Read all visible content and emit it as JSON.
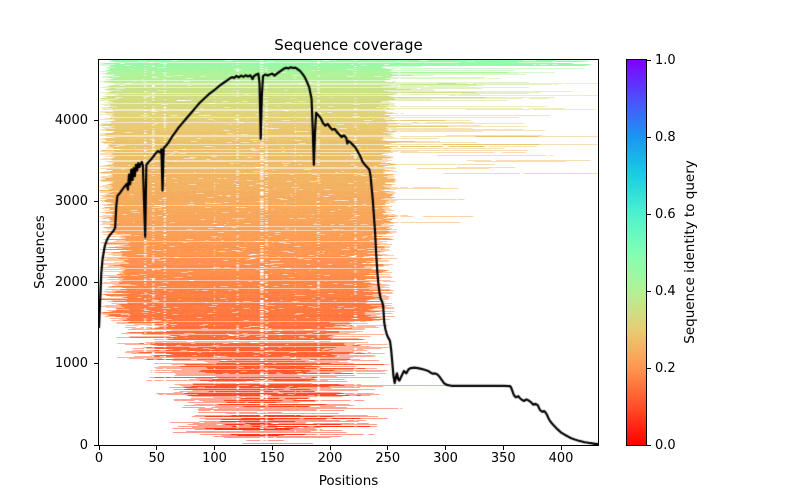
{
  "figure": {
    "title": "Sequence coverage",
    "xlabel": "Positions",
    "ylabel": "Sequences",
    "background": "#ffffff"
  },
  "colorbar": {
    "label": "Sequence identity to query",
    "tick_labels": [
      "0.0",
      "0.2",
      "0.4",
      "0.6",
      "0.8",
      "1.0"
    ],
    "tick_values": [
      0.0,
      0.2,
      0.4,
      0.6,
      0.8,
      1.0
    ],
    "stops": [
      {
        "t": 0.0,
        "color": "#ff0000"
      },
      {
        "t": 0.1,
        "color": "#ff4f28"
      },
      {
        "t": 0.2,
        "color": "#ff964f"
      },
      {
        "t": 0.3,
        "color": "#e6ce74"
      },
      {
        "t": 0.4,
        "color": "#b3f296"
      },
      {
        "t": 0.5,
        "color": "#80ffb4"
      },
      {
        "t": 0.6,
        "color": "#4df2ce"
      },
      {
        "t": 0.7,
        "color": "#1acee3"
      },
      {
        "t": 0.8,
        "color": "#1a96f2"
      },
      {
        "t": 0.9,
        "color": "#4d4ffc"
      },
      {
        "t": 1.0,
        "color": "#8000ff"
      }
    ]
  },
  "chart_data": {
    "type": "heatmap",
    "subtype": "msa-sequence-coverage-with-line",
    "title": "Sequence coverage",
    "xlabel": "Positions",
    "ylabel": "Sequences",
    "xlim": [
      0,
      432
    ],
    "ylim": [
      0,
      4740
    ],
    "x_ticks": [
      0,
      50,
      100,
      150,
      200,
      250,
      300,
      350,
      400
    ],
    "y_ticks": [
      0,
      1000,
      2000,
      3000,
      4000
    ],
    "grid": false,
    "legend": "none",
    "colorbar_label": "Sequence identity to query",
    "colorbar_range": [
      0.0,
      1.0
    ],
    "line_color": "#000000",
    "coverage_line": {
      "name": "number of sequences covering each position",
      "points": [
        [
          0,
          1450
        ],
        [
          1,
          1780
        ],
        [
          2,
          2120
        ],
        [
          3,
          2280
        ],
        [
          5,
          2450
        ],
        [
          7,
          2530
        ],
        [
          9,
          2580
        ],
        [
          11,
          2610
        ],
        [
          13,
          2645
        ],
        [
          14,
          2680
        ],
        [
          15,
          2950
        ],
        [
          16,
          3070
        ],
        [
          18,
          3100
        ],
        [
          20,
          3140
        ],
        [
          22,
          3180
        ],
        [
          24,
          3215
        ],
        [
          25,
          3145
        ],
        [
          26,
          3330
        ],
        [
          27,
          3210
        ],
        [
          28,
          3390
        ],
        [
          29,
          3260
        ],
        [
          30,
          3410
        ],
        [
          31,
          3310
        ],
        [
          32,
          3450
        ],
        [
          33,
          3380
        ],
        [
          34,
          3470
        ],
        [
          35,
          3420
        ],
        [
          36,
          3460
        ],
        [
          37,
          3485
        ],
        [
          38,
          3440
        ],
        [
          39,
          3000
        ],
        [
          40,
          2560
        ],
        [
          41,
          3450
        ],
        [
          43,
          3485
        ],
        [
          45,
          3515
        ],
        [
          47,
          3550
        ],
        [
          49,
          3590
        ],
        [
          51,
          3620
        ],
        [
          53,
          3600
        ],
        [
          54,
          3640
        ],
        [
          55,
          3130
        ],
        [
          56,
          3655
        ],
        [
          58,
          3685
        ],
        [
          60,
          3720
        ],
        [
          63,
          3790
        ],
        [
          66,
          3850
        ],
        [
          69,
          3910
        ],
        [
          72,
          3960
        ],
        [
          75,
          4010
        ],
        [
          78,
          4060
        ],
        [
          81,
          4110
        ],
        [
          84,
          4160
        ],
        [
          87,
          4210
        ],
        [
          90,
          4250
        ],
        [
          93,
          4290
        ],
        [
          96,
          4330
        ],
        [
          99,
          4360
        ],
        [
          102,
          4395
        ],
        [
          105,
          4430
        ],
        [
          108,
          4460
        ],
        [
          111,
          4490
        ],
        [
          113,
          4510
        ],
        [
          115,
          4530
        ],
        [
          117,
          4520
        ],
        [
          119,
          4545
        ],
        [
          121,
          4525
        ],
        [
          123,
          4548
        ],
        [
          125,
          4532
        ],
        [
          127,
          4552
        ],
        [
          129,
          4538
        ],
        [
          131,
          4552
        ],
        [
          133,
          4505
        ],
        [
          134,
          4540
        ],
        [
          136,
          4560
        ],
        [
          138,
          4572
        ],
        [
          139,
          4450
        ],
        [
          140,
          3770
        ],
        [
          141,
          4300
        ],
        [
          142,
          4540
        ],
        [
          144,
          4562
        ],
        [
          146,
          4548
        ],
        [
          148,
          4562
        ],
        [
          150,
          4572
        ],
        [
          152,
          4548
        ],
        [
          154,
          4572
        ],
        [
          156,
          4592
        ],
        [
          158,
          4612
        ],
        [
          160,
          4632
        ],
        [
          162,
          4645
        ],
        [
          164,
          4636
        ],
        [
          166,
          4650
        ],
        [
          168,
          4641
        ],
        [
          170,
          4646
        ],
        [
          172,
          4626
        ],
        [
          174,
          4606
        ],
        [
          176,
          4572
        ],
        [
          178,
          4532
        ],
        [
          180,
          4472
        ],
        [
          182,
          4402
        ],
        [
          184,
          4262
        ],
        [
          185,
          3900
        ],
        [
          186,
          3450
        ],
        [
          187,
          3850
        ],
        [
          188,
          4090
        ],
        [
          190,
          4056
        ],
        [
          192,
          4022
        ],
        [
          194,
          3962
        ],
        [
          196,
          3932
        ],
        [
          198,
          3952
        ],
        [
          200,
          3912
        ],
        [
          202,
          3882
        ],
        [
          204,
          3892
        ],
        [
          206,
          3852
        ],
        [
          208,
          3822
        ],
        [
          210,
          3792
        ],
        [
          212,
          3812
        ],
        [
          214,
          3782
        ],
        [
          215,
          3712
        ],
        [
          216,
          3742
        ],
        [
          218,
          3722
        ],
        [
          220,
          3692
        ],
        [
          222,
          3662
        ],
        [
          224,
          3612
        ],
        [
          226,
          3562
        ],
        [
          228,
          3492
        ],
        [
          230,
          3452
        ],
        [
          232,
          3422
        ],
        [
          234,
          3392
        ],
        [
          235,
          3322
        ],
        [
          236,
          3172
        ],
        [
          237,
          3022
        ],
        [
          238,
          2822
        ],
        [
          239,
          2622
        ],
        [
          240,
          2342
        ],
        [
          241,
          2122
        ],
        [
          242,
          1962
        ],
        [
          243,
          1862
        ],
        [
          244,
          1792
        ],
        [
          245,
          1772
        ],
        [
          246,
          1712
        ],
        [
          247,
          1502
        ],
        [
          248,
          1422
        ],
        [
          249,
          1372
        ],
        [
          250,
          1332
        ],
        [
          251,
          1307
        ],
        [
          252,
          1277
        ],
        [
          253,
          1162
        ],
        [
          254,
          1002
        ],
        [
          255,
          842
        ],
        [
          256,
          762
        ],
        [
          257,
          832
        ],
        [
          258,
          882
        ],
        [
          259,
          812
        ],
        [
          260,
          792
        ],
        [
          262,
          852
        ],
        [
          264,
          912
        ],
        [
          266,
          882
        ],
        [
          268,
          932
        ],
        [
          270,
          947
        ],
        [
          273,
          952
        ],
        [
          276,
          947
        ],
        [
          279,
          937
        ],
        [
          282,
          927
        ],
        [
          285,
          912
        ],
        [
          287,
          892
        ],
        [
          289,
          877
        ],
        [
          291,
          882
        ],
        [
          293,
          867
        ],
        [
          295,
          837
        ],
        [
          297,
          797
        ],
        [
          299,
          757
        ],
        [
          302,
          737
        ],
        [
          305,
          729
        ],
        [
          310,
          727
        ],
        [
          330,
          727
        ],
        [
          350,
          727
        ],
        [
          356,
          725
        ],
        [
          357,
          700
        ],
        [
          358,
          660
        ],
        [
          359,
          620
        ],
        [
          360,
          600
        ],
        [
          361,
          587
        ],
        [
          363,
          602
        ],
        [
          364,
          582
        ],
        [
          366,
          557
        ],
        [
          368,
          542
        ],
        [
          370,
          562
        ],
        [
          372,
          547
        ],
        [
          374,
          527
        ],
        [
          376,
          497
        ],
        [
          378,
          507
        ],
        [
          380,
          487
        ],
        [
          381,
          452
        ],
        [
          382,
          427
        ],
        [
          384,
          407
        ],
        [
          385,
          417
        ],
        [
          386,
          412
        ],
        [
          388,
          367
        ],
        [
          389,
          332
        ],
        [
          390,
          307
        ],
        [
          392,
          267
        ],
        [
          394,
          237
        ],
        [
          396,
          207
        ],
        [
          398,
          180
        ],
        [
          400,
          154
        ],
        [
          402,
          137
        ],
        [
          404,
          120
        ],
        [
          406,
          104
        ],
        [
          408,
          90
        ],
        [
          410,
          78
        ],
        [
          412,
          67
        ],
        [
          414,
          58
        ],
        [
          416,
          50
        ],
        [
          418,
          43
        ],
        [
          420,
          36
        ],
        [
          422,
          31
        ],
        [
          424,
          26
        ],
        [
          426,
          22
        ],
        [
          428,
          18
        ],
        [
          430,
          14
        ],
        [
          432,
          10
        ]
      ]
    },
    "identity_profile": {
      "note": "sequence identity to query as a function of row rank (0=bottom row, 1=top row), piecewise linear",
      "points": [
        [
          0.0,
          0.06
        ],
        [
          0.82,
          0.29
        ],
        [
          0.93,
          0.36
        ],
        [
          1.0,
          0.47
        ]
      ],
      "noise": 0.01
    },
    "msa_render": {
      "seed": 1337,
      "rows": 770,
      "bands": [
        {
          "f0": 0.0,
          "f1": 0.02,
          "s0": 95,
          "s1": 140,
          "e0": 140,
          "e1": 245,
          "empty": 0.5
        },
        {
          "f0": 0.02,
          "f1": 0.12,
          "s0": 60,
          "s1": 125,
          "e0": 150,
          "e1": 250,
          "empty": 0.32
        },
        {
          "f0": 0.12,
          "f1": 0.22,
          "s0": 40,
          "s1": 105,
          "e0": 170,
          "e1": 252,
          "empty": 0.22
        },
        {
          "f0": 0.22,
          "f1": 0.32,
          "s0": 15,
          "s1": 70,
          "e0": 195,
          "e1": 252,
          "empty": 0.1
        },
        {
          "f0": 0.32,
          "f1": 0.55,
          "s0": 0,
          "s1": 28,
          "e0": 228,
          "e1": 256,
          "empty": 0.05
        },
        {
          "f0": 0.55,
          "f1": 1.01,
          "s0": 0,
          "s1": 14,
          "e0": 244,
          "e1": 258,
          "empty": 0.03
        }
      ],
      "extension": {
        "min_frac": 0.52,
        "p_max": 0.55,
        "exp": 1.6,
        "e0": 262,
        "e1": 432,
        "top_frac": 0.985,
        "top_p": 0.95,
        "top_e0": 380
      },
      "mid_extension": {
        "f0": 0.05,
        "f1": 0.52,
        "p": 0.025,
        "e0": 250,
        "e1": 315
      },
      "right_fragment": {
        "min_frac": 0.7,
        "p": 0.05,
        "s0": 256,
        "s1": 326,
        "len0": 40,
        "len1": 160
      },
      "gap_columns": [
        [
          40,
          2,
          0.22
        ],
        [
          47,
          2,
          0.28
        ],
        [
          57,
          2,
          0.25
        ],
        [
          100,
          1,
          0.12
        ],
        [
          120,
          2,
          0.2
        ],
        [
          141,
          3,
          0.42
        ],
        [
          145,
          2,
          0.3
        ],
        [
          170,
          1,
          0.12
        ],
        [
          190,
          2,
          0.26
        ],
        [
          222,
          2,
          0.2
        ],
        [
          260,
          2,
          0.25
        ],
        [
          310,
          1,
          0.1
        ]
      ],
      "gap_run_p": {
        "low": 0.1,
        "mid": 0.075,
        "high": 0.055
      },
      "gap_len": [
        1,
        7
      ],
      "run_len": [
        3,
        27
      ]
    }
  }
}
